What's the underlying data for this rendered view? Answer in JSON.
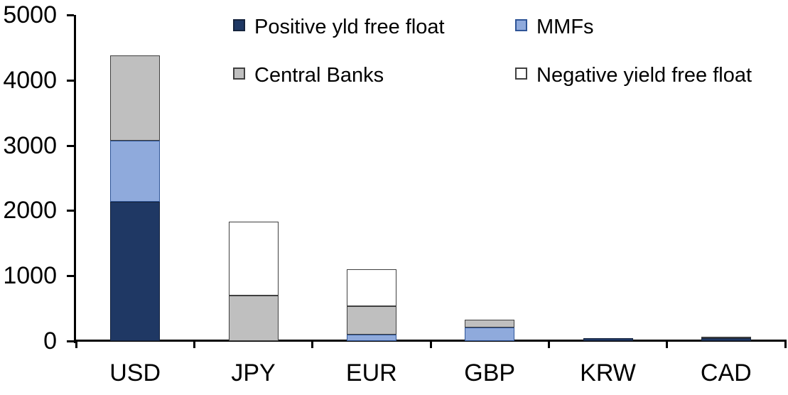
{
  "chart_data": {
    "type": "bar",
    "stacked": true,
    "title": "",
    "xlabel": "",
    "ylabel": "",
    "categories": [
      "USD",
      "JPY",
      "EUR",
      "GBP",
      "KRW",
      "CAD"
    ],
    "series": [
      {
        "name": "Positive yld free float",
        "color": "#1F3864",
        "border_color": "#16243D",
        "values": [
          2140,
          0,
          0,
          0,
          45,
          40
        ]
      },
      {
        "name": "MMFs",
        "color": "#8FAADC",
        "border_color": "#2F5597",
        "values": [
          930,
          0,
          95,
          210,
          0,
          0
        ]
      },
      {
        "name": "Central Banks",
        "color": "#BFBFBF",
        "border_color": "#404040",
        "values": [
          1310,
          700,
          435,
          120,
          0,
          30
        ]
      },
      {
        "name": "Negative yield free float",
        "color": "#FFFFFF",
        "border_color": "#404040",
        "values": [
          0,
          1130,
          570,
          0,
          0,
          0
        ]
      }
    ],
    "totals": [
      4380,
      1830,
      1100,
      330,
      45,
      70
    ],
    "ylim": [
      0,
      5000
    ],
    "ytick_interval": 1000,
    "ytick_labels": [
      "0",
      "1000",
      "2000",
      "3000",
      "4000",
      "5000"
    ],
    "grid": false,
    "legend_position": "top-inside",
    "legend_rows": [
      [
        "Positive yld free float",
        "MMFs"
      ],
      [
        "Central Banks",
        "Negative yield free float"
      ]
    ],
    "axis_color": "#000000",
    "background_color": "#FFFFFF"
  }
}
